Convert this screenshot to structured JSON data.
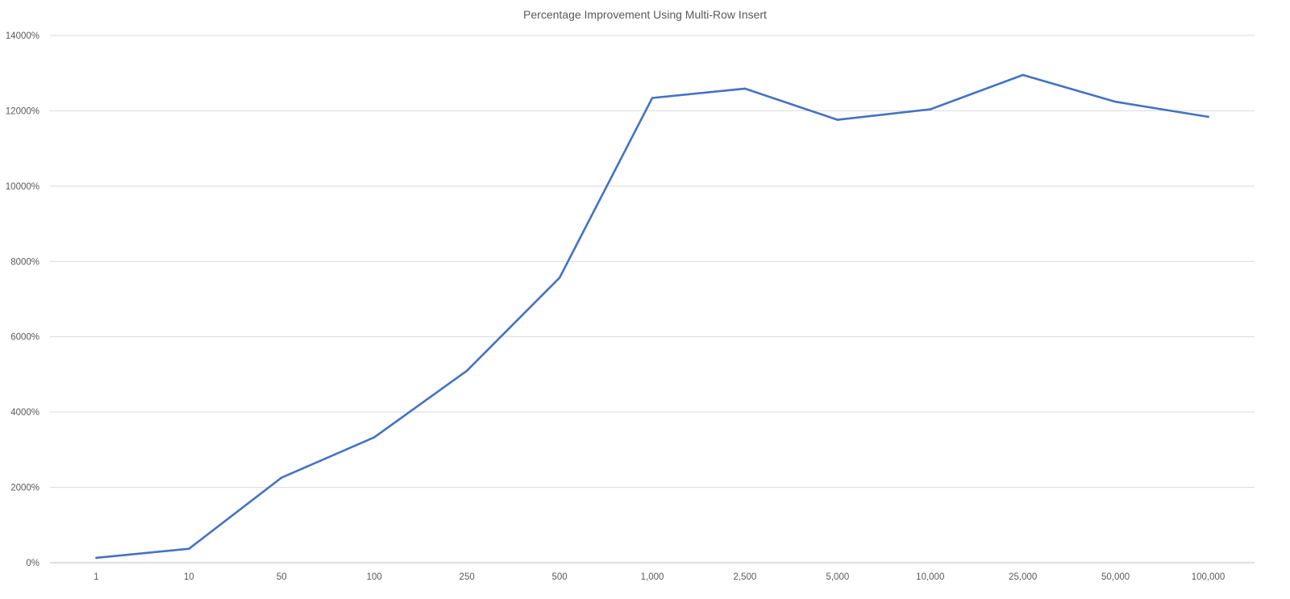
{
  "chart_data": {
    "type": "line",
    "title": "Percentage Improvement Using Multi-Row Insert",
    "xlabel": "",
    "ylabel": "",
    "categories": [
      "1",
      "10",
      "50",
      "100",
      "250",
      "500",
      "1,000",
      "2,500",
      "5,000",
      "10,000",
      "25,000",
      "50,000",
      "100,000"
    ],
    "series": [
      {
        "values": [
          130,
          370,
          2260,
          3330,
          5100,
          7570,
          12340,
          12590,
          11760,
          12040,
          12950,
          12240,
          11840
        ],
        "color": "#4472c4"
      }
    ],
    "ylim": [
      0,
      14000
    ],
    "y_ticks": [
      "0%",
      "2000%",
      "4000%",
      "6000%",
      "8000%",
      "10000%",
      "12000%",
      "14000%"
    ],
    "grid": true,
    "legend": "none"
  }
}
